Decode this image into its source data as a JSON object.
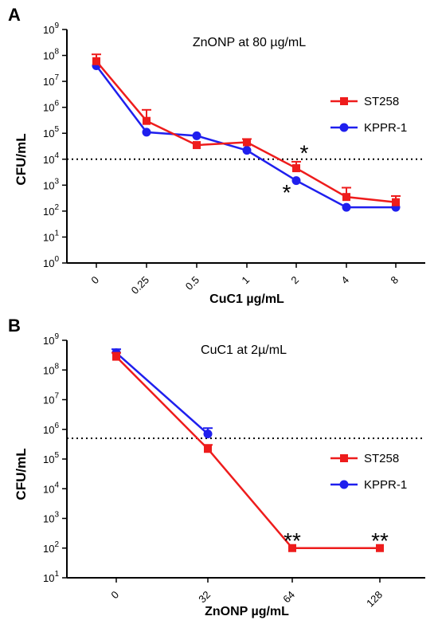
{
  "chart_data": [
    {
      "panel_label": "A",
      "type": "line",
      "title": "ZnONP at 80 µg/mL",
      "xlabel": "CuC1 µg/mL",
      "ylabel": "CFU/mL",
      "yscale": "log",
      "ylim": [
        1,
        1000000000
      ],
      "categories": [
        "0",
        "0.25",
        "0.5",
        "1",
        "2",
        "4",
        "8"
      ],
      "ytick_base": "10",
      "ytick_exponents": [
        "0",
        "1",
        "2",
        "3",
        "4",
        "5",
        "6",
        "7",
        "8",
        "9"
      ],
      "threshold": 10000,
      "series": [
        {
          "name": "ST258",
          "color": "#ee1c1c",
          "marker": "square",
          "values": [
            60000000,
            300000,
            35000,
            45000,
            4500,
            350,
            220
          ],
          "err_up": [
            110000000,
            800000,
            0,
            60000,
            8000,
            800,
            380
          ]
        },
        {
          "name": "KPPR-1",
          "color": "#1f1fee",
          "marker": "circle",
          "values": [
            40000000,
            110000,
            80000,
            22000,
            1500,
            140,
            140
          ],
          "err_up": [
            0,
            0,
            0,
            0,
            0,
            0,
            0
          ]
        }
      ],
      "annotations": [
        {
          "text": "*",
          "category": "2",
          "y": 18000
        },
        {
          "text": "*",
          "category": "2",
          "y": 550
        }
      ],
      "legend_position": "right"
    },
    {
      "panel_label": "B",
      "type": "line",
      "title": "CuC1 at 2µ/mL",
      "xlabel": "ZnONP µg/mL",
      "ylabel": "CFU/mL",
      "yscale": "log",
      "ylim": [
        10,
        1000000000
      ],
      "categories": [
        "0",
        "32",
        "64",
        "128"
      ],
      "ytick_base": "10",
      "ytick_exponents": [
        "1",
        "2",
        "3",
        "4",
        "5",
        "6",
        "7",
        "8",
        "9"
      ],
      "threshold": 500000,
      "series": [
        {
          "name": "ST258",
          "color": "#ee1c1c",
          "marker": "square",
          "values": [
            280000000,
            220000,
            100,
            100
          ],
          "err_up": [
            380000000,
            300000,
            0,
            0
          ]
        },
        {
          "name": "KPPR-1",
          "color": "#1f1fee",
          "marker": "circle",
          "values": [
            380000000,
            700000,
            null,
            null
          ],
          "err_up": [
            500000000,
            1100000,
            null,
            null
          ]
        }
      ],
      "annotations": [
        {
          "text": "**",
          "category": "64",
          "y": 180
        },
        {
          "text": "**",
          "category": "128",
          "y": 180
        }
      ],
      "legend_position": "right"
    }
  ]
}
